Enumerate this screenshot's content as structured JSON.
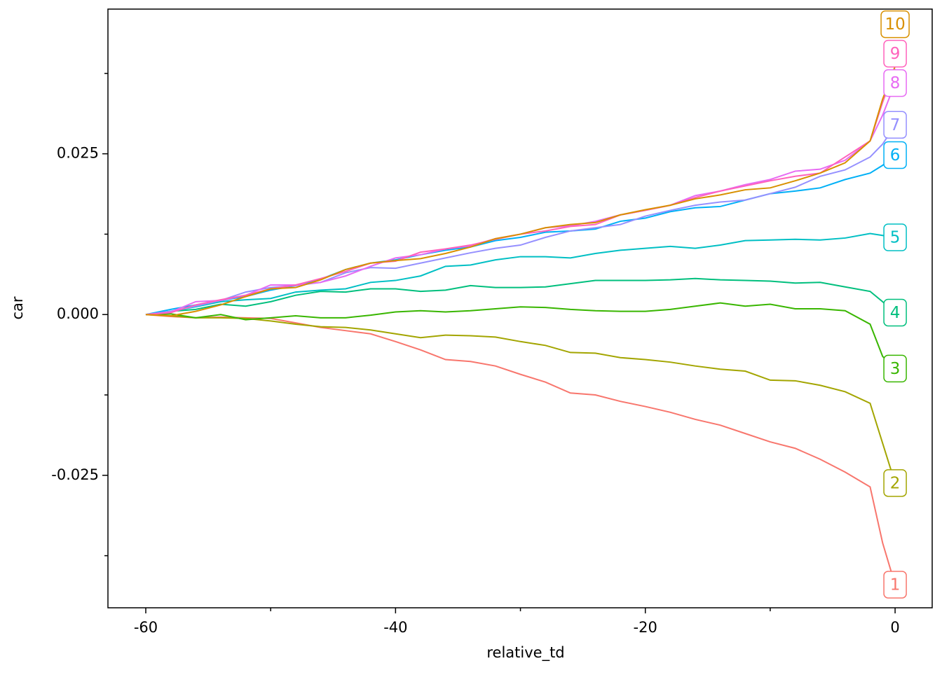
{
  "chart_data": {
    "type": "line",
    "x_label": "relative_td",
    "y_label": "car",
    "x": [
      -60,
      -58,
      -56,
      -54,
      -52,
      -50,
      -48,
      -46,
      -44,
      -42,
      -40,
      -38,
      -36,
      -34,
      -32,
      -30,
      -28,
      -26,
      -24,
      -22,
      -20,
      -18,
      -16,
      -14,
      -12,
      -10,
      -8,
      -6,
      -4,
      -2,
      -1,
      0
    ],
    "xlim": [
      -63.03,
      2.97
    ],
    "xticks": [
      -60,
      -40,
      -20,
      0
    ],
    "xminorticks": [
      -50,
      -30,
      -10
    ],
    "ylim": [
      -0.0456,
      0.0475
    ],
    "yticks": [
      {
        "value": -0.025,
        "label": "-0.025"
      },
      {
        "value": 0,
        "label": "0.000"
      },
      {
        "value": 0.025,
        "label": "0.025"
      }
    ],
    "yminorticks": [
      -0.0375,
      -0.0125,
      0.0125,
      0.0375
    ],
    "series": [
      {
        "name": "1",
        "color": "#F8766D",
        "values": [
          0,
          -0.0003,
          -0.0005,
          -0.0004,
          -0.0005,
          -0.0006,
          -0.0013,
          -0.002,
          -0.0025,
          -0.003,
          -0.0042,
          -0.0055,
          -0.007,
          -0.0073,
          -0.008,
          -0.0093,
          -0.0105,
          -0.0122,
          -0.0125,
          -0.0135,
          -0.0143,
          -0.0152,
          -0.0163,
          -0.0172,
          -0.0185,
          -0.0198,
          -0.0208,
          -0.0225,
          -0.0245,
          -0.0268,
          -0.0355,
          -0.042
        ]
      },
      {
        "name": "2",
        "color": "#A3A500",
        "values": [
          0,
          -0.0002,
          -0.0005,
          -0.0005,
          -0.0006,
          -0.001,
          -0.0015,
          -0.0019,
          -0.002,
          -0.0024,
          -0.003,
          -0.0036,
          -0.0032,
          -0.0033,
          -0.0035,
          -0.0042,
          -0.0048,
          -0.0059,
          -0.006,
          -0.0067,
          -0.007,
          -0.0074,
          -0.008,
          -0.0085,
          -0.0088,
          -0.0102,
          -0.0103,
          -0.011,
          -0.012,
          -0.0138,
          -0.02,
          -0.0262
        ]
      },
      {
        "name": "3",
        "color": "#39B600",
        "values": [
          0,
          0.0001,
          -0.0005,
          0,
          -0.0008,
          -0.0005,
          -0.0002,
          -0.0005,
          -0.0005,
          -0.0001,
          0.0004,
          0.0006,
          0.0004,
          0.0006,
          0.0009,
          0.0012,
          0.0011,
          0.0008,
          0.0006,
          0.0005,
          0.0005,
          0.0008,
          0.0013,
          0.0018,
          0.0013,
          0.0016,
          0.0009,
          0.0009,
          0.0006,
          -0.0015,
          -0.0065,
          -0.0084
        ]
      },
      {
        "name": "4",
        "color": "#00BF7D",
        "values": [
          0,
          0.0005,
          0.0008,
          0.0016,
          0.0013,
          0.002,
          0.003,
          0.0036,
          0.0035,
          0.004,
          0.004,
          0.0036,
          0.0038,
          0.0045,
          0.0042,
          0.0042,
          0.0043,
          0.0048,
          0.0053,
          0.0053,
          0.0053,
          0.0054,
          0.0056,
          0.0054,
          0.0053,
          0.0052,
          0.0049,
          0.005,
          0.0043,
          0.0036,
          0.002,
          0.0003
        ]
      },
      {
        "name": "5",
        "color": "#00BFC4",
        "values": [
          0,
          0.0005,
          0.0012,
          0.002,
          0.0023,
          0.0025,
          0.0035,
          0.0038,
          0.004,
          0.005,
          0.0053,
          0.006,
          0.0075,
          0.0077,
          0.0085,
          0.009,
          0.009,
          0.0088,
          0.0095,
          0.01,
          0.0103,
          0.0106,
          0.0103,
          0.0108,
          0.0115,
          0.0116,
          0.0117,
          0.0116,
          0.0119,
          0.0126,
          0.0123,
          0.012
        ]
      },
      {
        "name": "6",
        "color": "#00B0F6",
        "values": [
          0,
          0.0008,
          0.0015,
          0.0022,
          0.0028,
          0.0038,
          0.0045,
          0.0055,
          0.007,
          0.008,
          0.0085,
          0.0093,
          0.01,
          0.0105,
          0.0115,
          0.012,
          0.0128,
          0.013,
          0.0133,
          0.0145,
          0.015,
          0.016,
          0.0166,
          0.0168,
          0.0178,
          0.0188,
          0.0192,
          0.0197,
          0.021,
          0.022,
          0.0232,
          0.0248
        ]
      },
      {
        "name": "7",
        "color": "#9590FF",
        "values": [
          0,
          0.0005,
          0.0013,
          0.0022,
          0.0035,
          0.0042,
          0.0045,
          0.005,
          0.0065,
          0.0073,
          0.0072,
          0.008,
          0.0088,
          0.0096,
          0.0103,
          0.0108,
          0.012,
          0.013,
          0.0135,
          0.014,
          0.0153,
          0.0162,
          0.017,
          0.0175,
          0.0178,
          0.0188,
          0.0198,
          0.0215,
          0.0225,
          0.0245,
          0.0265,
          0.0295
        ]
      },
      {
        "name": "8",
        "color": "#E76BF3",
        "values": [
          0,
          0.0004,
          0.002,
          0.0022,
          0.003,
          0.0046,
          0.0046,
          0.005,
          0.006,
          0.0075,
          0.0088,
          0.0093,
          0.0102,
          0.0107,
          0.0118,
          0.0125,
          0.0135,
          0.0138,
          0.0145,
          0.0155,
          0.0162,
          0.017,
          0.0185,
          0.0192,
          0.0202,
          0.021,
          0.0223,
          0.0226,
          0.024,
          0.027,
          0.031,
          0.036
        ]
      },
      {
        "name": "9",
        "color": "#FF62BC",
        "values": [
          0,
          0.0003,
          0.0015,
          0.0023,
          0.003,
          0.004,
          0.0046,
          0.0056,
          0.0067,
          0.008,
          0.0083,
          0.0097,
          0.0102,
          0.0108,
          0.0117,
          0.0125,
          0.013,
          0.0137,
          0.014,
          0.0155,
          0.0162,
          0.017,
          0.0182,
          0.0192,
          0.02,
          0.0208,
          0.0215,
          0.022,
          0.0245,
          0.027,
          0.033,
          0.0382
        ]
      },
      {
        "name": "10",
        "color": "#D89000",
        "values": [
          0,
          -0.0002,
          0.0005,
          0.0015,
          0.0028,
          0.004,
          0.0042,
          0.0054,
          0.007,
          0.008,
          0.0084,
          0.0087,
          0.0095,
          0.0105,
          0.0118,
          0.0125,
          0.0135,
          0.014,
          0.0143,
          0.0155,
          0.0163,
          0.017,
          0.018,
          0.0186,
          0.0194,
          0.0197,
          0.0208,
          0.022,
          0.0236,
          0.027,
          0.0335,
          0.0386
        ]
      }
    ]
  }
}
